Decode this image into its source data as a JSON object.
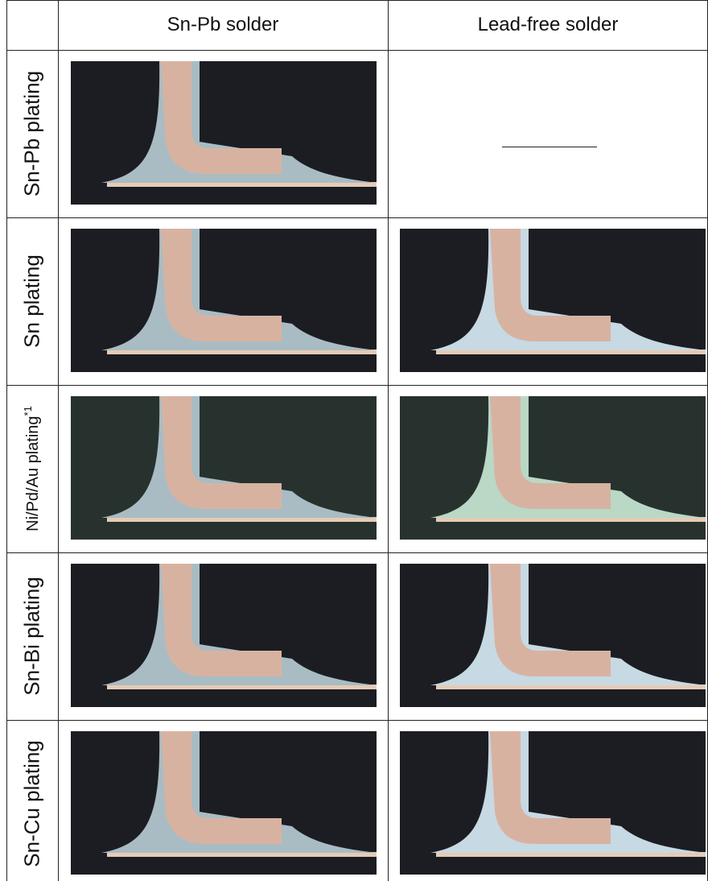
{
  "table": {
    "columns": [
      "Sn-Pb solder",
      "Lead-free solder"
    ],
    "rows": [
      {
        "label": "Sn-Pb plating"
      },
      {
        "label": "Sn plating"
      },
      {
        "label": "Ni/Pd/Au plating",
        "note": "*1"
      },
      {
        "label": "Sn-Bi plating"
      },
      {
        "label": "Sn-Cu plating"
      }
    ]
  }
}
